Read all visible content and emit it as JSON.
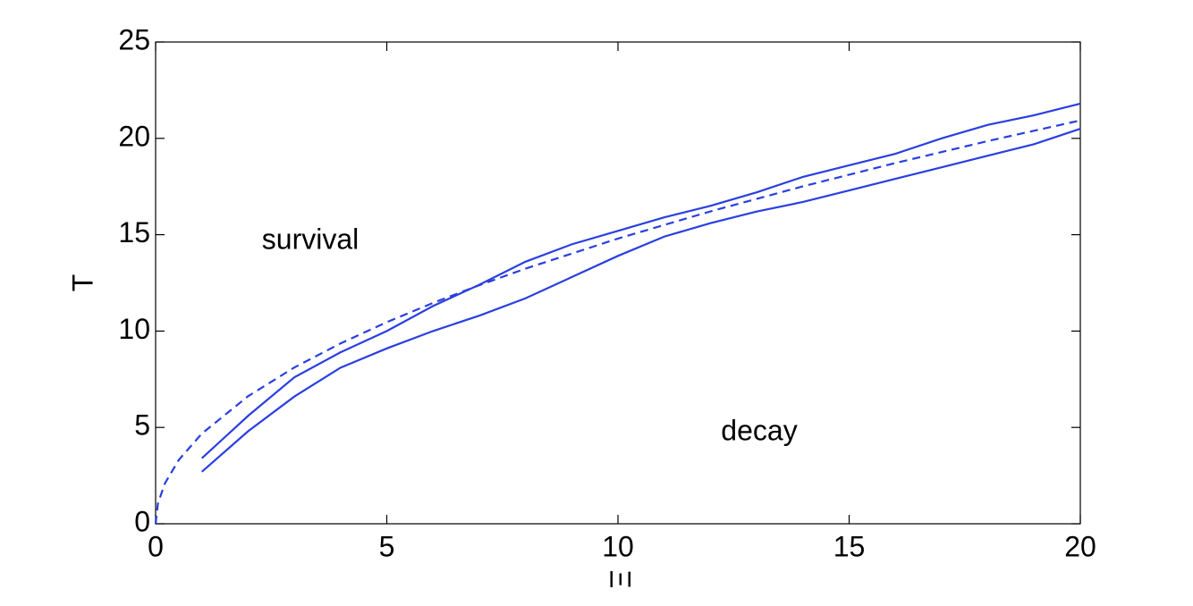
{
  "chart_data": {
    "type": "line",
    "xlabel": "Ξ",
    "ylabel": "T",
    "annotations": [
      "survival",
      "decay"
    ],
    "xlim": [
      0,
      20
    ],
    "ylim": [
      0,
      25
    ],
    "xticks": [
      0,
      5,
      10,
      15,
      20
    ],
    "yticks": [
      0,
      5,
      10,
      15,
      20,
      25
    ],
    "grid": false,
    "series": [
      {
        "color": "#2a3fe0",
        "linestyle": "solid",
        "x": [
          1,
          2,
          3,
          4,
          5,
          6,
          7,
          8,
          9,
          10,
          11,
          12,
          13,
          14,
          15,
          16,
          17,
          18,
          19,
          20
        ],
        "values": [
          3.4,
          5.6,
          7.6,
          8.9,
          10.0,
          11.3,
          12.4,
          13.6,
          14.5,
          15.2,
          15.9,
          16.5,
          17.2,
          18.0,
          18.6,
          19.2,
          20.0,
          20.7,
          21.2,
          21.8
        ]
      },
      {
        "color": "#2a3fe0",
        "linestyle": "solid",
        "x": [
          1,
          2,
          3,
          4,
          5,
          6,
          7,
          8,
          9,
          10,
          11,
          12,
          13,
          14,
          15,
          16,
          17,
          18,
          19,
          20
        ],
        "values": [
          2.7,
          4.8,
          6.6,
          8.1,
          9.1,
          10.0,
          10.8,
          11.7,
          12.8,
          13.9,
          14.9,
          15.6,
          16.2,
          16.7,
          17.3,
          17.9,
          18.5,
          19.1,
          19.7,
          20.5
        ]
      },
      {
        "color": "#2a3fe0",
        "linestyle": "dashed",
        "x": [
          0,
          0.05,
          0.2,
          0.5,
          1,
          2,
          3,
          4,
          5,
          6,
          7,
          8,
          10,
          12,
          14,
          16,
          18,
          20
        ],
        "values": [
          0,
          1.05,
          2.09,
          3.31,
          4.68,
          6.62,
          8.11,
          9.36,
          10.46,
          11.46,
          12.38,
          13.24,
          14.8,
          16.21,
          17.51,
          18.72,
          19.86,
          20.93
        ]
      }
    ]
  }
}
